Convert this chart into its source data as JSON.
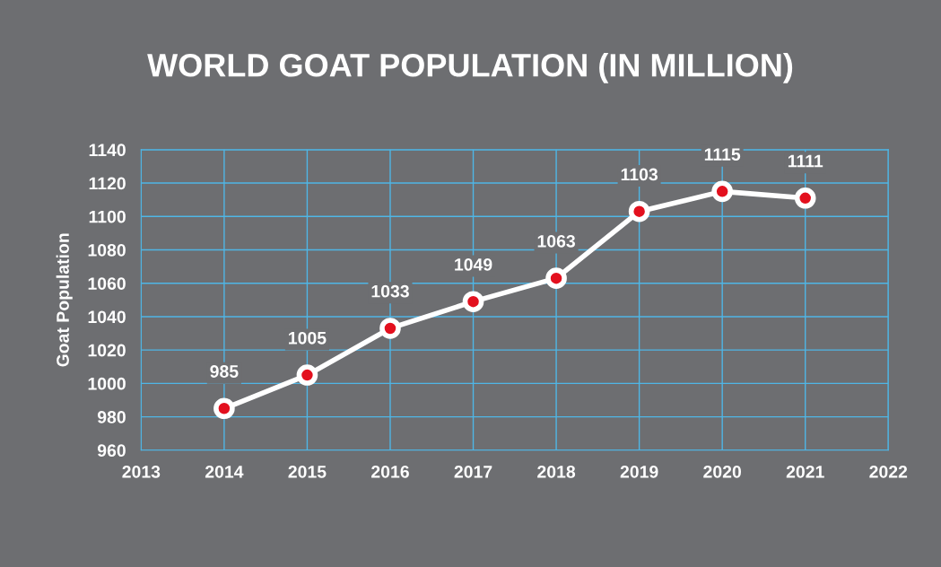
{
  "chart_data": {
    "type": "line",
    "title": "WORLD GOAT POPULATION (IN MILLION)",
    "ylabel": "Goat Population",
    "x": [
      2014,
      2015,
      2016,
      2017,
      2018,
      2019,
      2020,
      2021
    ],
    "series": [
      {
        "color": "#ffffff",
        "values": [
          985,
          1005,
          1033,
          1049,
          1063,
          1103,
          1115,
          1111
        ]
      }
    ],
    "xlim": [
      2013,
      2022
    ],
    "xticks": [
      2013,
      2014,
      2015,
      2016,
      2017,
      2018,
      2019,
      2020,
      2021,
      2022
    ],
    "ylim": [
      960,
      1140
    ],
    "yticks": [
      960,
      980,
      1000,
      1020,
      1040,
      1060,
      1080,
      1100,
      1120,
      1140
    ],
    "grid": true,
    "marker": "circle",
    "line_style": "solid",
    "data_labels": true
  }
}
